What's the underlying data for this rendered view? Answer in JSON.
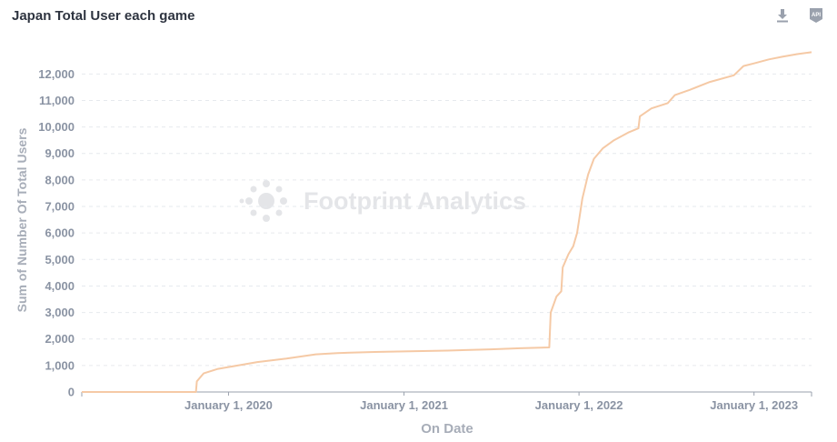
{
  "header": {
    "title": "Japan Total User each game",
    "download_icon": "download-icon",
    "api_icon": "api-icon",
    "api_text": "API"
  },
  "watermark": {
    "text": "Footprint Analytics",
    "icon": "footprint-logo-icon"
  },
  "colors": {
    "line": "#f5c9a5",
    "axis_text": "#8a93a3",
    "grid": "#e6e9ee",
    "title": "#2e3440"
  },
  "chart_data": {
    "type": "line",
    "title": "Japan Total User each game",
    "xlabel": "On Date",
    "ylabel": "Sum of Number Of Total Users",
    "xlim": [
      "2019-03-01",
      "2023-05-01"
    ],
    "ylim": [
      0,
      12800
    ],
    "y_ticks": [
      0,
      1000,
      2000,
      3000,
      4000,
      5000,
      6000,
      7000,
      8000,
      9000,
      10000,
      11000,
      12000
    ],
    "y_tick_labels": [
      "0",
      "1,000",
      "2,000",
      "3,000",
      "4,000",
      "5,000",
      "6,000",
      "7,000",
      "8,000",
      "9,000",
      "10,000",
      "11,000",
      "12,000"
    ],
    "x_ticks": [
      "2020-01-01",
      "2021-01-01",
      "2022-01-01",
      "2023-01-01"
    ],
    "x_tick_labels": [
      "January 1, 2020",
      "January 1, 2021",
      "January 1, 2022",
      "January 1, 2023"
    ],
    "grid": true,
    "series": [
      {
        "points": [
          [
            "2019-03-01",
            0
          ],
          [
            "2019-10-25",
            0
          ],
          [
            "2019-10-27",
            400
          ],
          [
            "2019-11-10",
            700
          ],
          [
            "2019-12-10",
            870
          ],
          [
            "2020-01-20",
            1000
          ],
          [
            "2020-03-01",
            1130
          ],
          [
            "2020-05-01",
            1260
          ],
          [
            "2020-07-01",
            1420
          ],
          [
            "2020-08-15",
            1470
          ],
          [
            "2020-11-01",
            1510
          ],
          [
            "2021-01-01",
            1530
          ],
          [
            "2021-04-01",
            1560
          ],
          [
            "2021-07-01",
            1610
          ],
          [
            "2021-09-01",
            1650
          ],
          [
            "2021-10-31",
            1680
          ],
          [
            "2021-11-03",
            3000
          ],
          [
            "2021-11-15",
            3600
          ],
          [
            "2021-11-25",
            3800
          ],
          [
            "2021-11-28",
            4700
          ],
          [
            "2021-12-10",
            5200
          ],
          [
            "2021-12-20",
            5500
          ],
          [
            "2021-12-28",
            6000
          ],
          [
            "2022-01-08",
            7300
          ],
          [
            "2022-01-20",
            8200
          ],
          [
            "2022-02-01",
            8800
          ],
          [
            "2022-02-20",
            9200
          ],
          [
            "2022-03-15",
            9500
          ],
          [
            "2022-04-15",
            9800
          ],
          [
            "2022-05-05",
            9950
          ],
          [
            "2022-05-08",
            10400
          ],
          [
            "2022-06-01",
            10700
          ],
          [
            "2022-07-05",
            10900
          ],
          [
            "2022-07-20",
            11200
          ],
          [
            "2022-08-20",
            11400
          ],
          [
            "2022-10-01",
            11700
          ],
          [
            "2022-11-20",
            11950
          ],
          [
            "2022-12-10",
            12300
          ],
          [
            "2023-01-01",
            12400
          ],
          [
            "2023-02-01",
            12550
          ],
          [
            "2023-03-01",
            12650
          ],
          [
            "2023-04-01",
            12750
          ],
          [
            "2023-05-01",
            12820
          ]
        ]
      }
    ]
  }
}
